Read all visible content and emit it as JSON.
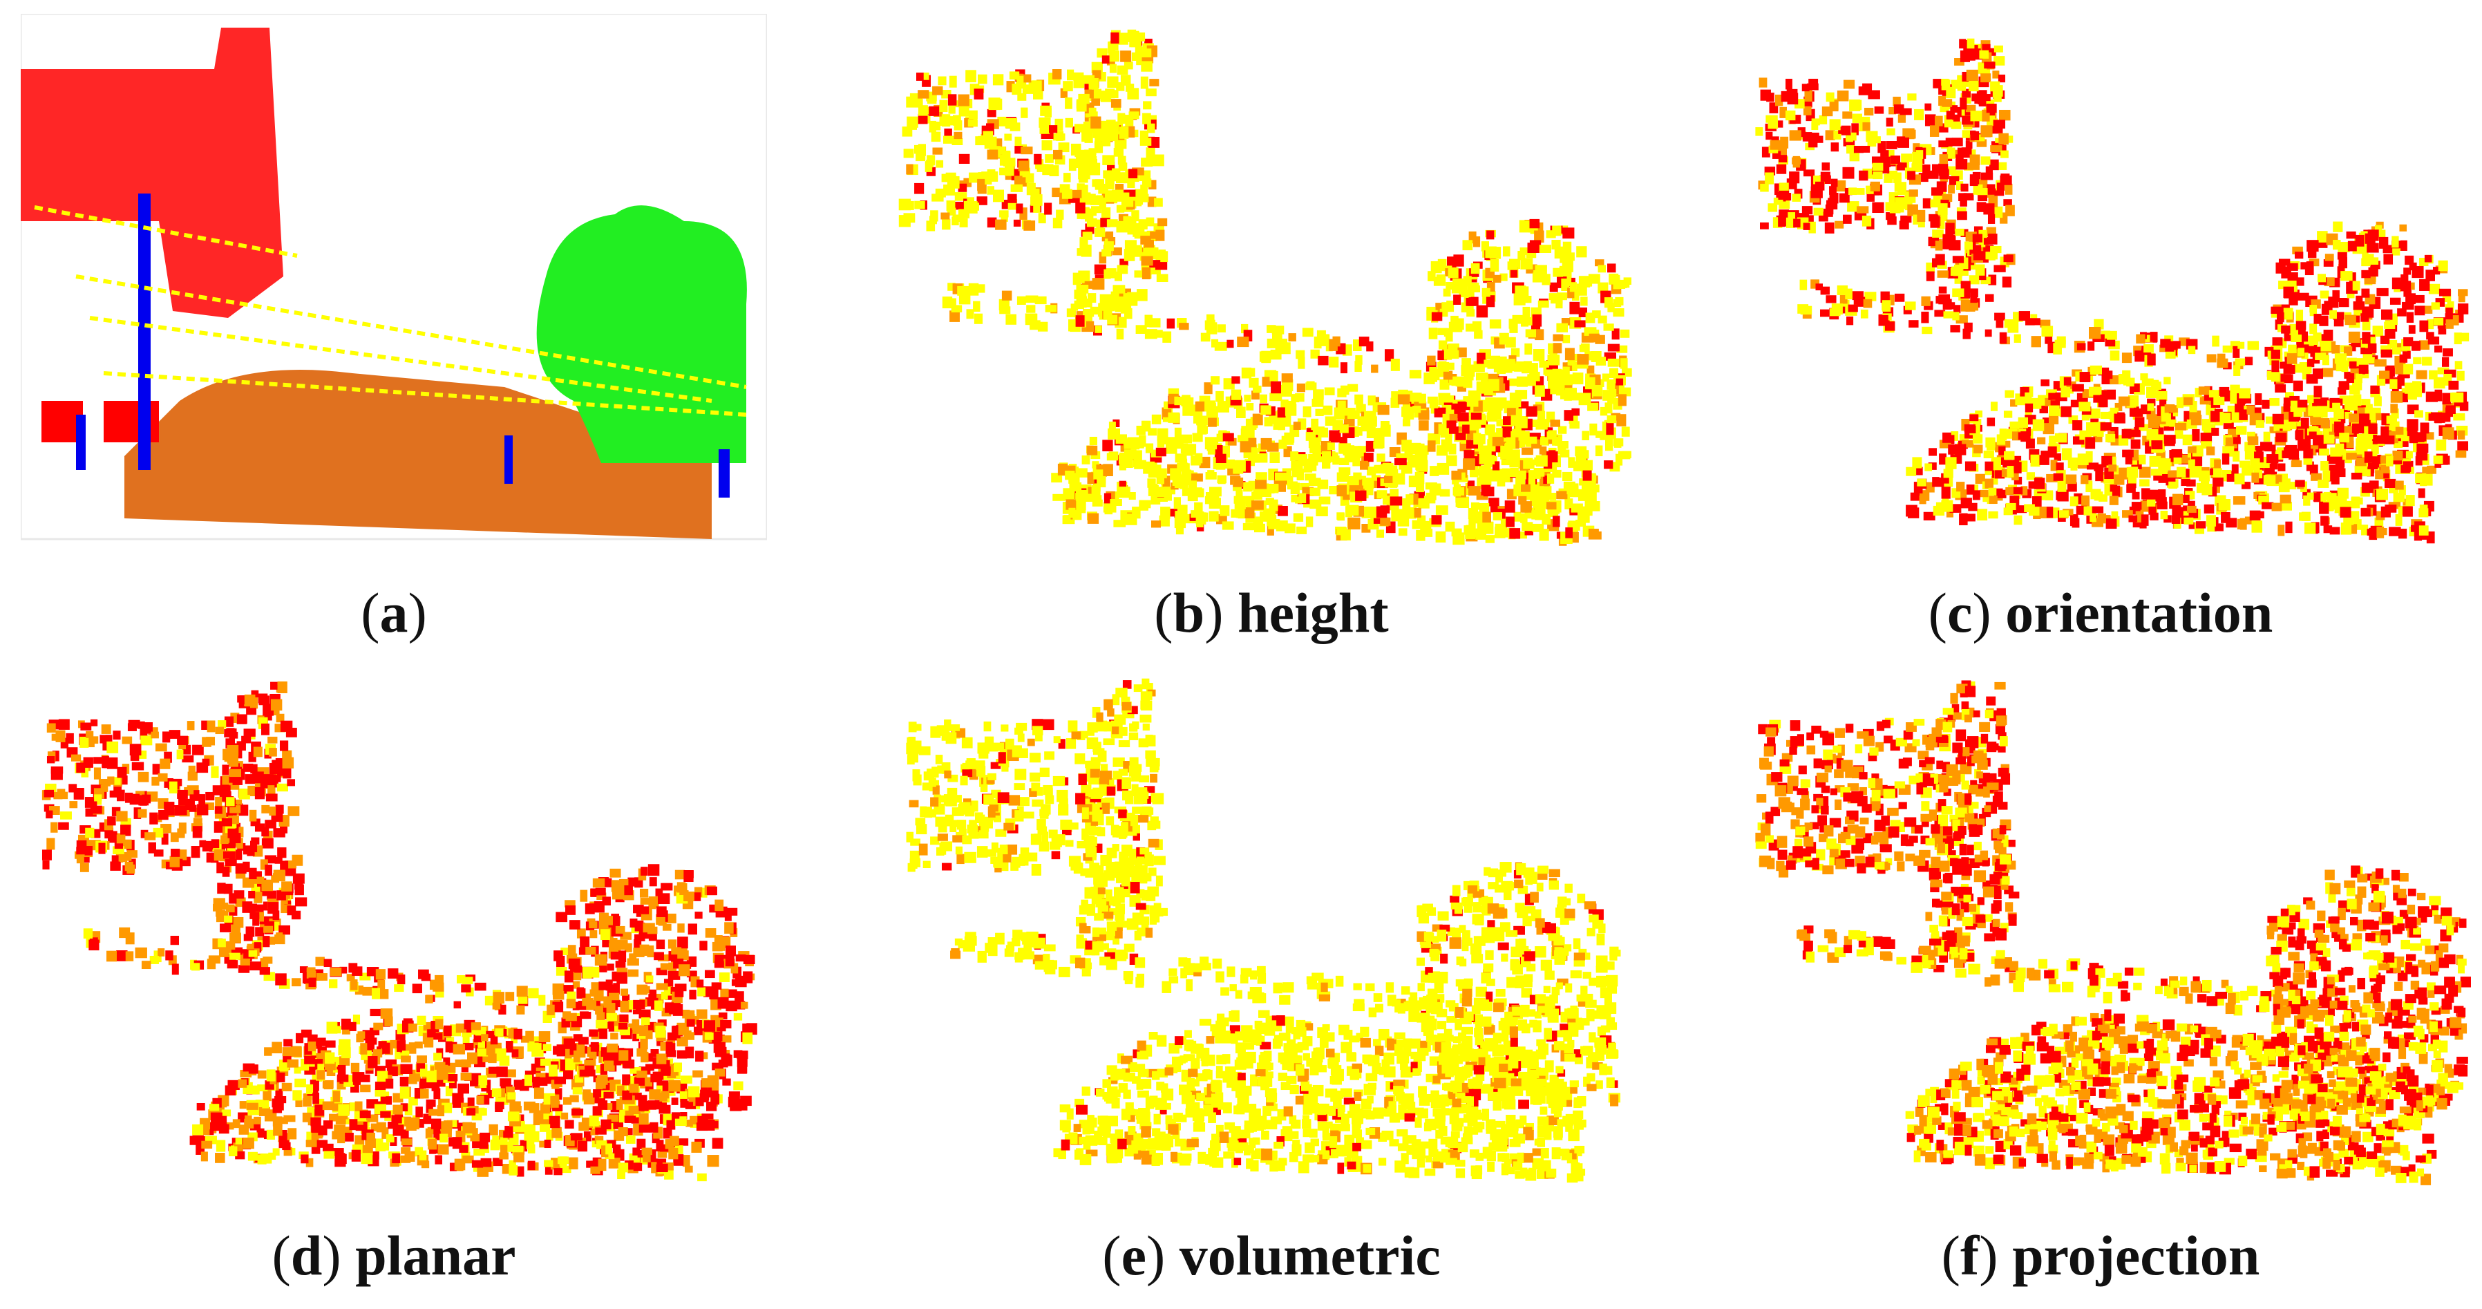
{
  "panels": [
    {
      "letter": "a",
      "word": "",
      "type": "labels"
    },
    {
      "letter": "b",
      "word": "height",
      "type": "feature",
      "mix": [
        0.78,
        0.14,
        0.08
      ]
    },
    {
      "letter": "c",
      "word": "orientation",
      "type": "feature",
      "mix": [
        0.45,
        0.17,
        0.38
      ]
    },
    {
      "letter": "d",
      "word": "planar",
      "type": "feature",
      "mix": [
        0.25,
        0.4,
        0.35
      ]
    },
    {
      "letter": "e",
      "word": "volumetric",
      "type": "feature",
      "mix": [
        0.86,
        0.1,
        0.04
      ]
    },
    {
      "letter": "f",
      "word": "projection",
      "type": "feature",
      "mix": [
        0.36,
        0.36,
        0.28
      ]
    }
  ],
  "colors": {
    "yellow": "#ffff00",
    "orange": "#ff9900",
    "red": "#ff0000",
    "ground": "#e0711f",
    "building": "#ff0000",
    "tree": "#22ee22",
    "pole": "#0000ee"
  }
}
